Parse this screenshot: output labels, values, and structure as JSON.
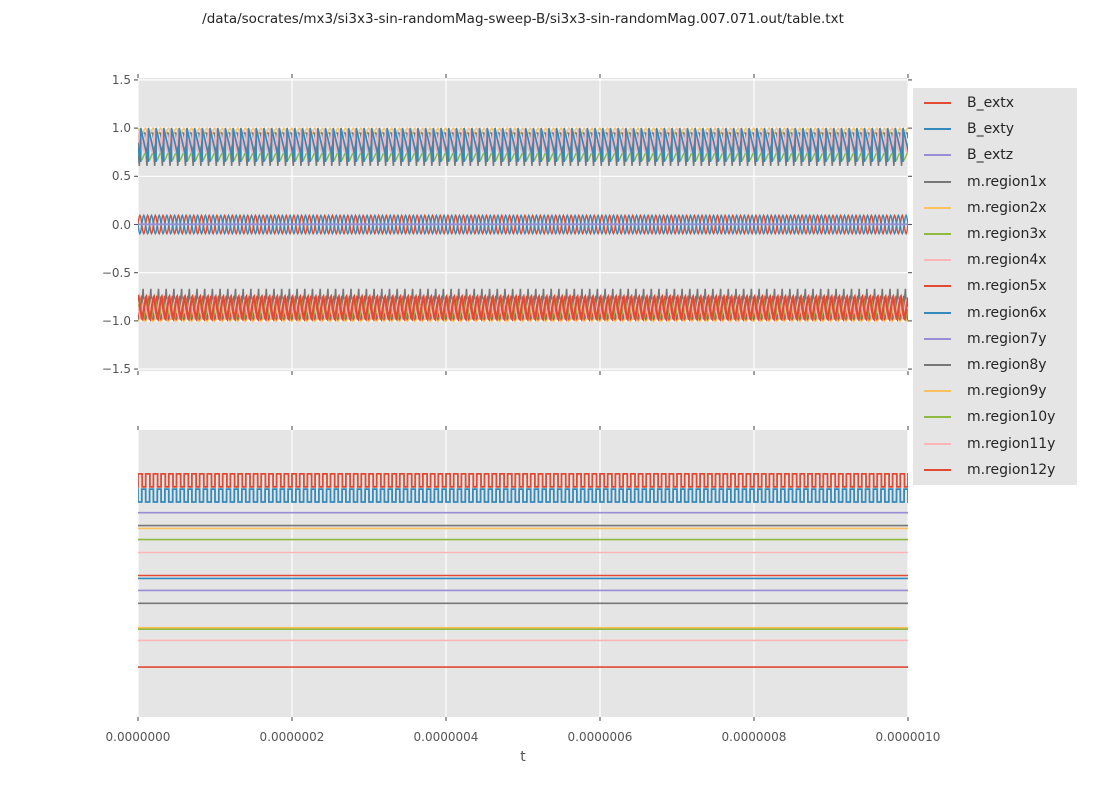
{
  "figure": {
    "title": "/data/socrates/mx3/si3x3-sin-randomMag-sweep-B/si3x3-sin-randomMag.007.071.out/table.txt",
    "xlabel": "t",
    "background": "#ffffff",
    "axes_background": "#e5e5e5",
    "grid_color": "#ffffff",
    "tick_color": "#555555",
    "tick_label_color": "#555555",
    "title_color": "#262626"
  },
  "legend": {
    "entries": [
      {
        "label": "B_extx",
        "color": "#E24A33"
      },
      {
        "label": "B_exty",
        "color": "#348ABD"
      },
      {
        "label": "B_extz",
        "color": "#988ED5"
      },
      {
        "label": "m.region1x",
        "color": "#777777"
      },
      {
        "label": "m.region2x",
        "color": "#FBC15E"
      },
      {
        "label": "m.region3x",
        "color": "#8EBA42"
      },
      {
        "label": "m.region4x",
        "color": "#FFB5B8"
      },
      {
        "label": "m.region5x",
        "color": "#E24A33"
      },
      {
        "label": "m.region6x",
        "color": "#348ABD"
      },
      {
        "label": "m.region7y",
        "color": "#988ED5"
      },
      {
        "label": "m.region8y",
        "color": "#777777"
      },
      {
        "label": "m.region9y",
        "color": "#FBC15E"
      },
      {
        "label": "m.region10y",
        "color": "#8EBA42"
      },
      {
        "label": "m.region11y",
        "color": "#FFB5B8"
      },
      {
        "label": "m.region12y",
        "color": "#E24A33"
      }
    ]
  },
  "chart_data": [
    {
      "type": "line",
      "position": "top",
      "xlim": [
        0,
        1e-06
      ],
      "xticks": [
        0,
        2e-07,
        4e-07,
        6e-07,
        8e-07,
        1e-06
      ],
      "xtick_labels_shown": false,
      "ylim": [
        -1.52,
        1.52
      ],
      "yticks": [
        1.5,
        1.0,
        0.5,
        0.0,
        -0.5,
        -1.0,
        -1.5
      ],
      "ytick_labels": [
        "1.5",
        "1.0",
        "0.5",
        "0.0",
        "−0.5",
        "−1.0",
        "−1.5"
      ],
      "grid": "both",
      "unit": "value",
      "series": [
        {
          "name": "B_extx",
          "color": "#E24A33",
          "lw": 1.4,
          "wave": {
            "type": "sine",
            "min": -0.095,
            "max": 0.095,
            "cycles": 100,
            "phase": 0
          }
        },
        {
          "name": "B_exty",
          "color": "#348ABD",
          "lw": 1.4,
          "wave": {
            "type": "sine",
            "min": -0.095,
            "max": 0.095,
            "cycles": 100,
            "phase": 0.5
          }
        },
        {
          "name": "B_extz",
          "color": "#988ED5",
          "lw": 1.5,
          "wave": {
            "type": "flat",
            "level": 0
          }
        },
        {
          "name": "m.region1x",
          "color": "#777777",
          "lw": 1.6,
          "wave": {
            "type": "spike_down",
            "min": 0.6,
            "max": 0.95,
            "cycles": 100,
            "phase": 0.1,
            "power": 8
          }
        },
        {
          "name": "m.region2x",
          "color": "#FBC15E",
          "lw": 1.4,
          "wave": {
            "type": "sine",
            "min": 0.92,
            "max": 1.0,
            "cycles": 100,
            "phase": 0.3
          }
        },
        {
          "name": "m.region3x",
          "color": "#8EBA42",
          "lw": 1.5,
          "wave": {
            "type": "tri",
            "min": 0.66,
            "max": 0.75,
            "cycles": 100,
            "phase": 0.55
          }
        },
        {
          "name": "m.region4x",
          "color": "#FFB5B8",
          "lw": 2.6,
          "wave": {
            "type": "tri",
            "min": 0.75,
            "max": 1.0,
            "cycles": 100,
            "phase": 0.2
          }
        },
        {
          "name": "m.region5x",
          "color": "#E24A33",
          "lw": 2.2,
          "wave": {
            "type": "tri",
            "min": -1.0,
            "max": -0.74,
            "cycles": 100,
            "phase": 0
          }
        },
        {
          "name": "m.region6x",
          "color": "#348ABD",
          "lw": 1.7,
          "wave": {
            "type": "saw_down",
            "min": 0.65,
            "max": 1.0,
            "cycles": 100,
            "phase": 0.35
          }
        },
        {
          "name": "m.region7y",
          "color": "#988ED5",
          "lw": 1.4,
          "wave": {
            "type": "flat",
            "level": 0.004
          }
        },
        {
          "name": "m.region8y",
          "color": "#777777",
          "lw": 1.6,
          "wave": {
            "type": "spike_up",
            "min": -0.97,
            "max": -0.66,
            "cycles": 100,
            "phase": 0.6,
            "power": 8
          }
        },
        {
          "name": "m.region9y",
          "color": "#FBC15E",
          "lw": 1.4,
          "wave": {
            "type": "sine",
            "min": -1.005,
            "max": -0.955,
            "cycles": 100,
            "phase": 0.8
          }
        },
        {
          "name": "m.region10y",
          "color": "#8EBA42",
          "lw": 1.3,
          "wave": {
            "type": "tri",
            "min": -0.98,
            "max": -0.78,
            "cycles": 100,
            "phase": 0.25
          }
        },
        {
          "name": "m.region11y",
          "color": "#FFB5B8",
          "lw": 1.3,
          "wave": {
            "type": "tri",
            "min": -0.99,
            "max": -0.76,
            "cycles": 100,
            "phase": 0.7
          }
        },
        {
          "name": "m.region12y",
          "color": "#E24A33",
          "lw": 2.2,
          "wave": {
            "type": "tri",
            "min": -1.0,
            "max": -0.73,
            "cycles": 100,
            "phase": 0.45
          }
        }
      ]
    },
    {
      "type": "line",
      "position": "bottom",
      "xlim": [
        0,
        1e-06
      ],
      "xticks": [
        0,
        2e-07,
        4e-07,
        6e-07,
        8e-07,
        1e-06
      ],
      "xtick_labels": [
        "0.0000000",
        "0.0000002",
        "0.0000004",
        "0.0000006",
        "0.0000008",
        "0.0000010"
      ],
      "xtick_labels_shown": true,
      "yticks": [],
      "ytick_labels": [],
      "grid": "x",
      "unit": "axes_fraction_from_top",
      "series": [
        {
          "name": "B_extx",
          "color": "#E24A33",
          "lw": 1.8,
          "wave": {
            "type": "square",
            "hi": 0.153,
            "lo": 0.198,
            "duty": 0.55,
            "cycles": 100,
            "phase": 0
          }
        },
        {
          "name": "B_exty",
          "color": "#348ABD",
          "lw": 1.8,
          "wave": {
            "type": "square",
            "hi": 0.206,
            "lo": 0.251,
            "duty": 0.5,
            "cycles": 100,
            "phase": 0.5
          }
        },
        {
          "name": "B_extz",
          "color": "#988ED5",
          "lw": 1.6,
          "wave": {
            "type": "flat",
            "level": 0.288
          }
        },
        {
          "name": "m.region1x",
          "color": "#777777",
          "lw": 1.6,
          "wave": {
            "type": "flat",
            "level": 0.333
          }
        },
        {
          "name": "m.region2x",
          "color": "#FBC15E",
          "lw": 1.6,
          "wave": {
            "type": "flat",
            "level": 0.343
          }
        },
        {
          "name": "m.region3x",
          "color": "#8EBA42",
          "lw": 1.6,
          "wave": {
            "type": "flat",
            "level": 0.382
          }
        },
        {
          "name": "m.region4x",
          "color": "#FFB5B8",
          "lw": 1.6,
          "wave": {
            "type": "flat",
            "level": 0.427
          }
        },
        {
          "name": "m.region5x",
          "color": "#E24A33",
          "lw": 1.6,
          "wave": {
            "type": "flat",
            "level": 0.507
          }
        },
        {
          "name": "m.region6x",
          "color": "#348ABD",
          "lw": 1.6,
          "wave": {
            "type": "flat",
            "level": 0.517
          }
        },
        {
          "name": "m.region7y",
          "color": "#988ED5",
          "lw": 1.6,
          "wave": {
            "type": "flat",
            "level": 0.559
          }
        },
        {
          "name": "m.region8y",
          "color": "#777777",
          "lw": 1.6,
          "wave": {
            "type": "flat",
            "level": 0.604
          }
        },
        {
          "name": "m.region9y",
          "color": "#FBC15E",
          "lw": 1.6,
          "wave": {
            "type": "flat",
            "level": 0.689
          }
        },
        {
          "name": "m.region10y",
          "color": "#8EBA42",
          "lw": 1.6,
          "wave": {
            "type": "flat",
            "level": 0.694
          }
        },
        {
          "name": "m.region11y",
          "color": "#FFB5B8",
          "lw": 1.6,
          "wave": {
            "type": "flat",
            "level": 0.733
          }
        },
        {
          "name": "m.region12y",
          "color": "#E24A33",
          "lw": 1.6,
          "wave": {
            "type": "flat",
            "level": 0.826
          }
        }
      ]
    }
  ]
}
